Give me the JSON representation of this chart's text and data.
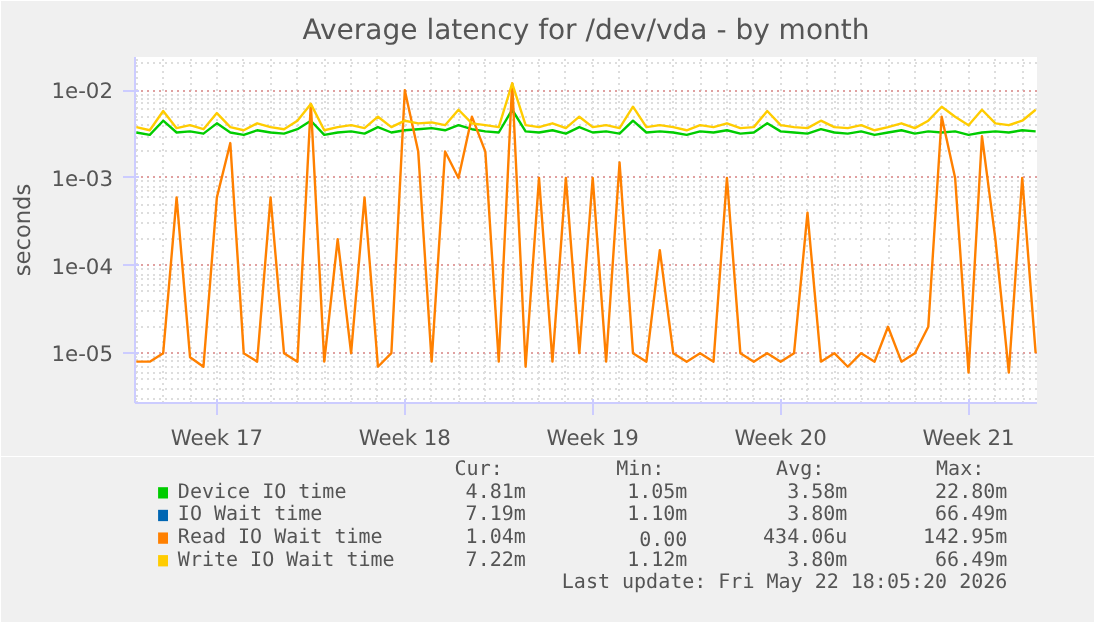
{
  "chart_data": {
    "type": "line",
    "title": "Average latency for /dev/vda - by month",
    "ylabel": "seconds",
    "log": "y",
    "categories": [
      null,
      null,
      null,
      null,
      null,
      null,
      "Week 17",
      null,
      null,
      null,
      null,
      null,
      null,
      null,
      null,
      null,
      null,
      null,
      null,
      null,
      "Week 18",
      null,
      null,
      null,
      null,
      null,
      null,
      null,
      null,
      null,
      null,
      null,
      null,
      null,
      "Week 19",
      null,
      null,
      null,
      null,
      null,
      null,
      null,
      null,
      null,
      null,
      null,
      null,
      null,
      "Week 20",
      null,
      null,
      null,
      null,
      null,
      null,
      null,
      null,
      null,
      null,
      null,
      null,
      null,
      "Week 21",
      null,
      null,
      null,
      null,
      null
    ],
    "ylim": [
      2.7e-06,
      0.024
    ],
    "yticks": [
      {
        "value": 1e-05,
        "label": "1e-05"
      },
      {
        "value": 0.0001,
        "label": "1e-04"
      },
      {
        "value": 0.001,
        "label": "1e-03"
      },
      {
        "value": 0.01,
        "label": "1e-02"
      }
    ],
    "grid": true,
    "legend": "bottom",
    "series": [
      {
        "name": "Device IO time",
        "color": "#00cc00",
        "values": [
          0.0033,
          0.0031,
          0.0045,
          0.0033,
          0.0034,
          0.0032,
          0.0042,
          0.0033,
          0.0031,
          0.0035,
          0.0033,
          0.0032,
          0.0036,
          0.0045,
          0.0031,
          0.0033,
          0.0034,
          0.0032,
          0.0038,
          0.0033,
          0.0035,
          0.0036,
          0.0037,
          0.0035,
          0.004,
          0.0036,
          0.0034,
          0.0033,
          0.006,
          0.0034,
          0.0033,
          0.0035,
          0.0032,
          0.0038,
          0.0033,
          0.0034,
          0.0032,
          0.0045,
          0.0033,
          0.0034,
          0.0033,
          0.0031,
          0.0034,
          0.0033,
          0.0035,
          0.0032,
          0.0033,
          0.0042,
          0.0034,
          0.0033,
          0.0032,
          0.0036,
          0.0033,
          0.0032,
          0.0034,
          0.0031,
          0.0033,
          0.0035,
          0.0032,
          0.0034,
          0.0033,
          0.0034,
          0.0031,
          0.0033,
          0.0034,
          0.0033,
          0.0035,
          0.0034
        ]
      },
      {
        "name": "IO Wait time",
        "color": "#0066b3",
        "values": [
          null,
          null,
          null,
          null,
          null,
          null,
          null,
          null,
          null,
          null,
          null,
          null,
          null,
          null,
          null,
          null,
          null,
          null,
          null,
          null,
          null,
          null,
          null,
          null,
          null,
          null,
          null,
          null,
          null,
          null,
          null,
          null,
          null,
          null,
          null,
          null,
          null,
          null,
          null,
          null,
          null,
          null,
          null,
          null,
          null,
          null,
          null,
          null,
          null,
          null,
          null,
          null,
          null,
          null,
          null,
          null,
          null,
          null,
          null,
          null,
          null,
          null,
          null,
          null,
          null,
          null,
          null,
          null
        ]
      },
      {
        "name": "Read IO Wait time",
        "color": "#ff8000",
        "values": [
          8e-06,
          8e-06,
          1e-05,
          0.0006,
          9e-06,
          7e-06,
          0.0006,
          0.0025,
          1e-05,
          8e-06,
          0.0006,
          1e-05,
          8e-06,
          0.007,
          8e-06,
          0.0002,
          1e-05,
          0.0006,
          7e-06,
          1e-05,
          0.01,
          0.002,
          8e-06,
          0.002,
          0.001,
          0.005,
          0.002,
          8e-06,
          0.012,
          7e-06,
          0.001,
          8e-06,
          0.001,
          1e-05,
          0.001,
          8e-06,
          0.0015,
          1e-05,
          8e-06,
          0.00015,
          1e-05,
          8e-06,
          1e-05,
          8e-06,
          0.001,
          1e-05,
          8e-06,
          1e-05,
          8e-06,
          1e-05,
          0.0004,
          8e-06,
          1e-05,
          7e-06,
          1e-05,
          8e-06,
          2e-05,
          8e-06,
          1e-05,
          2e-05,
          0.005,
          0.001,
          6e-06,
          0.003,
          0.0002,
          6e-06,
          0.001,
          1e-05
        ]
      },
      {
        "name": "Write IO Wait time",
        "color": "#ffcc00",
        "values": [
          0.0038,
          0.0035,
          0.0058,
          0.0037,
          0.004,
          0.0036,
          0.0055,
          0.0038,
          0.0035,
          0.0042,
          0.0038,
          0.0036,
          0.0045,
          0.007,
          0.0035,
          0.0038,
          0.004,
          0.0037,
          0.005,
          0.0038,
          0.0045,
          0.0042,
          0.0043,
          0.004,
          0.006,
          0.0042,
          0.004,
          0.0038,
          0.012,
          0.004,
          0.0038,
          0.0042,
          0.0037,
          0.005,
          0.0038,
          0.004,
          0.0037,
          0.0065,
          0.0038,
          0.004,
          0.0038,
          0.0035,
          0.004,
          0.0038,
          0.0042,
          0.0037,
          0.0038,
          0.0058,
          0.004,
          0.0038,
          0.0037,
          0.0045,
          0.0038,
          0.0037,
          0.004,
          0.0035,
          0.0038,
          0.0042,
          0.0037,
          0.0045,
          0.0065,
          0.005,
          0.004,
          0.006,
          0.0042,
          0.004,
          0.0045,
          0.006
        ]
      }
    ],
    "annotations": [
      "Cur:",
      "Min:",
      "Avg:",
      "Max:",
      "4.81m",
      "1.05m",
      "3.58m",
      "22.80m",
      "7.19m",
      "1.10m",
      "3.80m",
      "66.49m",
      "1.04m",
      "0.00",
      "434.06u",
      "142.95m",
      "7.22m",
      "1.12m",
      "3.80m",
      "66.49m",
      "Last update: Fri May 22 18:05:20 2026"
    ]
  }
}
